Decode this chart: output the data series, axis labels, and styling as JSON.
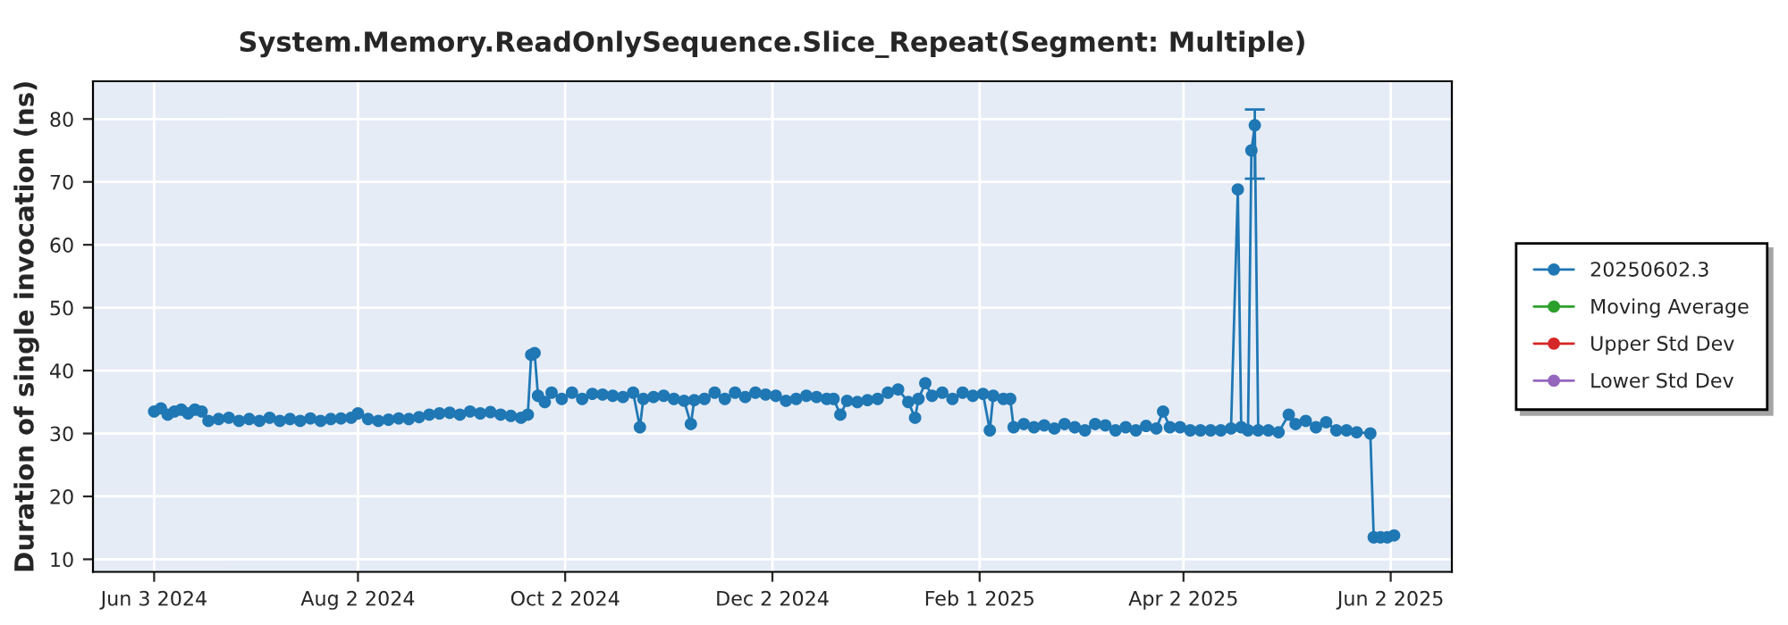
{
  "chart_data": {
    "type": "line",
    "title": "System.Memory.ReadOnlySequence.Slice_Repeat(Segment: Multiple)",
    "ylabel": "Duration of single invocation (ns)",
    "xlim": [
      "2024-05-16",
      "2025-06-20"
    ],
    "xticks": [
      {
        "value": "2024-06-03",
        "label": "Jun 3 2024"
      },
      {
        "value": "2024-08-02",
        "label": "Aug 2 2024"
      },
      {
        "value": "2024-10-02",
        "label": "Oct 2 2024"
      },
      {
        "value": "2024-12-02",
        "label": "Dec 2 2024"
      },
      {
        "value": "2025-02-01",
        "label": "Feb 1 2025"
      },
      {
        "value": "2025-04-02",
        "label": "Apr 2 2025"
      },
      {
        "value": "2025-06-02",
        "label": "Jun 2 2025"
      }
    ],
    "ylim": [
      8,
      86
    ],
    "yticks": [
      10,
      20,
      30,
      40,
      50,
      60,
      70,
      80
    ],
    "grid": true,
    "legend": "right",
    "marker": "circle",
    "line_style": "solid",
    "x": [
      "2024-06-03",
      "2024-06-05",
      "2024-06-07",
      "2024-06-09",
      "2024-06-11",
      "2024-06-13",
      "2024-06-15",
      "2024-06-17",
      "2024-06-19",
      "2024-06-22",
      "2024-06-25",
      "2024-06-28",
      "2024-07-01",
      "2024-07-04",
      "2024-07-07",
      "2024-07-10",
      "2024-07-13",
      "2024-07-16",
      "2024-07-19",
      "2024-07-22",
      "2024-07-25",
      "2024-07-28",
      "2024-07-31",
      "2024-08-02",
      "2024-08-05",
      "2024-08-08",
      "2024-08-11",
      "2024-08-14",
      "2024-08-17",
      "2024-08-20",
      "2024-08-23",
      "2024-08-26",
      "2024-08-29",
      "2024-09-01",
      "2024-09-04",
      "2024-09-07",
      "2024-09-10",
      "2024-09-13",
      "2024-09-16",
      "2024-09-19",
      "2024-09-21",
      "2024-09-22",
      "2024-09-23",
      "2024-09-24",
      "2024-09-26",
      "2024-09-28",
      "2024-10-01",
      "2024-10-04",
      "2024-10-07",
      "2024-10-10",
      "2024-10-13",
      "2024-10-16",
      "2024-10-19",
      "2024-10-22",
      "2024-10-24",
      "2024-10-25",
      "2024-10-28",
      "2024-10-31",
      "2024-11-03",
      "2024-11-06",
      "2024-11-08",
      "2024-11-09",
      "2024-11-12",
      "2024-11-15",
      "2024-11-18",
      "2024-11-21",
      "2024-11-24",
      "2024-11-27",
      "2024-11-30",
      "2024-12-03",
      "2024-12-06",
      "2024-12-09",
      "2024-12-12",
      "2024-12-15",
      "2024-12-18",
      "2024-12-20",
      "2024-12-22",
      "2024-12-24",
      "2024-12-27",
      "2024-12-30",
      "2025-01-02",
      "2025-01-05",
      "2025-01-08",
      "2025-01-11",
      "2025-01-13",
      "2025-01-14",
      "2025-01-16",
      "2025-01-18",
      "2025-01-21",
      "2025-01-24",
      "2025-01-27",
      "2025-01-30",
      "2025-02-02",
      "2025-02-04",
      "2025-02-05",
      "2025-02-08",
      "2025-02-10",
      "2025-02-11",
      "2025-02-14",
      "2025-02-17",
      "2025-02-20",
      "2025-02-23",
      "2025-02-26",
      "2025-03-01",
      "2025-03-04",
      "2025-03-07",
      "2025-03-10",
      "2025-03-13",
      "2025-03-16",
      "2025-03-19",
      "2025-03-22",
      "2025-03-25",
      "2025-03-27",
      "2025-03-29",
      "2025-04-01",
      "2025-04-04",
      "2025-04-07",
      "2025-04-10",
      "2025-04-13",
      "2025-04-16",
      "2025-04-18",
      "2025-04-19",
      "2025-04-21",
      "2025-04-22",
      "2025-04-23",
      "2025-04-24",
      "2025-04-27",
      "2025-04-30",
      "2025-05-03",
      "2025-05-05",
      "2025-05-08",
      "2025-05-11",
      "2025-05-14",
      "2025-05-17",
      "2025-05-20",
      "2025-05-23",
      "2025-05-27",
      "2025-05-28",
      "2025-05-30",
      "2025-06-01",
      "2025-06-03"
    ],
    "series": [
      {
        "name": "20250602.3",
        "color": "#1f77b4",
        "values": [
          33.5,
          34,
          33,
          33.5,
          33.8,
          33.2,
          33.8,
          33.5,
          32,
          32.3,
          32.5,
          32,
          32.3,
          32,
          32.5,
          32,
          32.3,
          32,
          32.4,
          32,
          32.3,
          32.4,
          32.5,
          33.2,
          32.3,
          32,
          32.2,
          32.4,
          32.3,
          32.6,
          33,
          33.2,
          33.3,
          33,
          33.5,
          33.2,
          33.4,
          33,
          32.8,
          32.5,
          33,
          42.5,
          42.8,
          36,
          35,
          36.5,
          35.5,
          36.5,
          35.5,
          36.3,
          36.2,
          36,
          35.8,
          36.5,
          31,
          35.5,
          35.8,
          36,
          35.5,
          35.2,
          31.5,
          35.3,
          35.5,
          36.5,
          35.5,
          36.5,
          35.8,
          36.5,
          36.2,
          36,
          35.2,
          35.5,
          36,
          35.8,
          35.5,
          35.5,
          33,
          35.2,
          35,
          35.3,
          35.5,
          36.5,
          37,
          35,
          32.5,
          35.5,
          38,
          36,
          36.5,
          35.5,
          36.5,
          36,
          36.3,
          30.5,
          36,
          35.5,
          35.5,
          31,
          31.5,
          31,
          31.3,
          30.8,
          31.5,
          31,
          30.5,
          31.5,
          31.3,
          30.5,
          31,
          30.5,
          31.2,
          30.8,
          33.5,
          31,
          31,
          30.5,
          30.5,
          30.5,
          30.5,
          30.8,
          68.8,
          31,
          30.5,
          75,
          79,
          30.5,
          30.5,
          30.2,
          33,
          31.5,
          32,
          31,
          31.8,
          30.5,
          30.5,
          30.2,
          30,
          13.5,
          13.5,
          13.5,
          13.8
        ],
        "errors": [
          null,
          null,
          null,
          null,
          null,
          null,
          null,
          null,
          null,
          null,
          null,
          null,
          null,
          null,
          null,
          null,
          null,
          null,
          null,
          null,
          null,
          null,
          null,
          null,
          null,
          null,
          null,
          null,
          null,
          null,
          null,
          null,
          null,
          null,
          null,
          null,
          null,
          null,
          null,
          null,
          null,
          null,
          null,
          null,
          null,
          null,
          null,
          null,
          null,
          null,
          null,
          null,
          null,
          null,
          null,
          null,
          null,
          null,
          null,
          null,
          null,
          null,
          null,
          null,
          null,
          null,
          null,
          null,
          null,
          null,
          null,
          null,
          null,
          null,
          null,
          null,
          null,
          null,
          null,
          null,
          null,
          null,
          null,
          null,
          null,
          null,
          null,
          null,
          null,
          null,
          null,
          null,
          null,
          null,
          null,
          null,
          null,
          null,
          null,
          null,
          null,
          null,
          null,
          null,
          null,
          null,
          null,
          null,
          null,
          null,
          null,
          null,
          null,
          null,
          null,
          null,
          null,
          null,
          null,
          null,
          null,
          null,
          null,
          null,
          [
            70.5,
            81.5
          ],
          null,
          null,
          null,
          null,
          null,
          null,
          null,
          null,
          null,
          null,
          null,
          null,
          null,
          null,
          null,
          null
        ]
      },
      {
        "name": "Moving Average",
        "color": "#2ca02c",
        "values": [
          null,
          null,
          null,
          null,
          null,
          null,
          null,
          null,
          null,
          null,
          null,
          null,
          null,
          null,
          null,
          null,
          null,
          null,
          null,
          null,
          null,
          null,
          null,
          null,
          null,
          null,
          null,
          null,
          null,
          null,
          null,
          null,
          null,
          null,
          null,
          null,
          null,
          null,
          null,
          null,
          null,
          null,
          null,
          null,
          null,
          null,
          null,
          null,
          null,
          null,
          null,
          null,
          null,
          null,
          null,
          null,
          null,
          null,
          null,
          null,
          null,
          null,
          null,
          null,
          null,
          null,
          null,
          null,
          null,
          null,
          null,
          null,
          null,
          null,
          null,
          null,
          null,
          null,
          null,
          null,
          null,
          null,
          null,
          null,
          null,
          null,
          null,
          null,
          null,
          null,
          null,
          null,
          null,
          null,
          null,
          null,
          null,
          null,
          null,
          null,
          null,
          null,
          null,
          null,
          null,
          null,
          null,
          null,
          null,
          null,
          null,
          null,
          null,
          null,
          null,
          null,
          null,
          null,
          null,
          null,
          null,
          null,
          null,
          null,
          null,
          null,
          null,
          null,
          null,
          null,
          null,
          null,
          null,
          null,
          null,
          null,
          null,
          null,
          null,
          null,
          null
        ]
      },
      {
        "name": "Upper Std Dev",
        "color": "#d62728",
        "values": [
          null,
          null,
          null,
          null,
          null,
          null,
          null,
          null,
          null,
          null,
          null,
          null,
          null,
          null,
          null,
          null,
          null,
          null,
          null,
          null,
          null,
          null,
          null,
          null,
          null,
          null,
          null,
          null,
          null,
          null,
          null,
          null,
          null,
          null,
          null,
          null,
          null,
          null,
          null,
          null,
          null,
          null,
          null,
          null,
          null,
          null,
          null,
          null,
          null,
          null,
          null,
          null,
          null,
          null,
          null,
          null,
          null,
          null,
          null,
          null,
          null,
          null,
          null,
          null,
          null,
          null,
          null,
          null,
          null,
          null,
          null,
          null,
          null,
          null,
          null,
          null,
          null,
          null,
          null,
          null,
          null,
          null,
          null,
          null,
          null,
          null,
          null,
          null,
          null,
          null,
          null,
          null,
          null,
          null,
          null,
          null,
          null,
          null,
          null,
          null,
          null,
          null,
          null,
          null,
          null,
          null,
          null,
          null,
          null,
          null,
          null,
          null,
          null,
          null,
          null,
          null,
          null,
          null,
          null,
          null,
          null,
          null,
          null,
          null,
          null,
          null,
          null,
          null,
          null,
          null,
          null,
          null,
          null,
          null,
          null,
          null,
          null,
          null,
          null,
          null,
          null
        ]
      },
      {
        "name": "Lower Std Dev",
        "color": "#9467bd",
        "values": [
          null,
          null,
          null,
          null,
          null,
          null,
          null,
          null,
          null,
          null,
          null,
          null,
          null,
          null,
          null,
          null,
          null,
          null,
          null,
          null,
          null,
          null,
          null,
          null,
          null,
          null,
          null,
          null,
          null,
          null,
          null,
          null,
          null,
          null,
          null,
          null,
          null,
          null,
          null,
          null,
          null,
          null,
          null,
          null,
          null,
          null,
          null,
          null,
          null,
          null,
          null,
          null,
          null,
          null,
          null,
          null,
          null,
          null,
          null,
          null,
          null,
          null,
          null,
          null,
          null,
          null,
          null,
          null,
          null,
          null,
          null,
          null,
          null,
          null,
          null,
          null,
          null,
          null,
          null,
          null,
          null,
          null,
          null,
          null,
          null,
          null,
          null,
          null,
          null,
          null,
          null,
          null,
          null,
          null,
          null,
          null,
          null,
          null,
          null,
          null,
          null,
          null,
          null,
          null,
          null,
          null,
          null,
          null,
          null,
          null,
          null,
          null,
          null,
          null,
          null,
          null,
          null,
          null,
          null,
          null,
          null,
          null,
          null,
          null,
          null,
          null,
          null,
          null,
          null,
          null,
          null,
          null,
          null,
          null,
          null,
          null,
          null,
          null,
          null,
          null,
          null
        ]
      }
    ]
  }
}
